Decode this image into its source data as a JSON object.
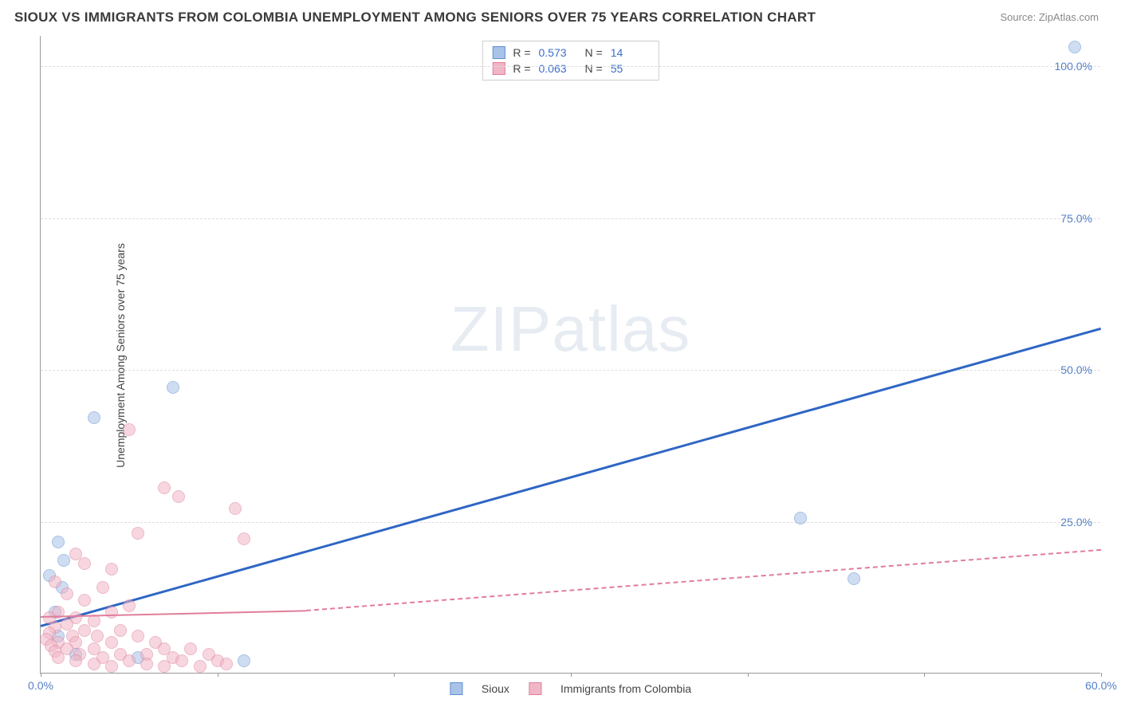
{
  "title": "SIOUX VS IMMIGRANTS FROM COLOMBIA UNEMPLOYMENT AMONG SENIORS OVER 75 YEARS CORRELATION CHART",
  "source": "Source: ZipAtlas.com",
  "ylabel": "Unemployment Among Seniors over 75 years",
  "watermark": {
    "bold": "ZIP",
    "thin": "atlas"
  },
  "chart": {
    "type": "scatter",
    "xlim": [
      0,
      60
    ],
    "ylim": [
      0,
      105
    ],
    "x_ticks": [
      0,
      10,
      20,
      30,
      40,
      50,
      60
    ],
    "x_tick_labels": [
      "0.0%",
      "",
      "",
      "",
      "",
      "",
      "60.0%"
    ],
    "y_gridlines": [
      25,
      50,
      75,
      100
    ],
    "y_tick_labels": [
      "25.0%",
      "50.0%",
      "75.0%",
      "100.0%"
    ],
    "grid_color": "#dddddd",
    "background_color": "#ffffff",
    "axis_color": "#999999",
    "tick_label_color": "#5680c8",
    "tick_label_fontsize": 14,
    "marker_radius": 8,
    "marker_opacity": 0.55,
    "series": [
      {
        "name": "Sioux",
        "fill_color": "#a9c3e8",
        "stroke_color": "#5f8fd1",
        "correlation_R": "0.573",
        "correlation_N": "14",
        "trendline": {
          "color": "#2f66c4",
          "width": 2.5,
          "dash": "solid",
          "x1": 0,
          "y1": 8,
          "x2": 60,
          "y2": 57,
          "extrapolate_dash_from_x": null
        },
        "points": [
          {
            "x": 58.5,
            "y": 103
          },
          {
            "x": 43.0,
            "y": 25.5
          },
          {
            "x": 46.0,
            "y": 15.5
          },
          {
            "x": 3.0,
            "y": 42.0
          },
          {
            "x": 7.5,
            "y": 47.0
          },
          {
            "x": 1.0,
            "y": 21.5
          },
          {
            "x": 1.3,
            "y": 18.5
          },
          {
            "x": 0.5,
            "y": 16.0
          },
          {
            "x": 1.2,
            "y": 14.0
          },
          {
            "x": 0.8,
            "y": 10.0
          },
          {
            "x": 2.0,
            "y": 3.0
          },
          {
            "x": 5.5,
            "y": 2.5
          },
          {
            "x": 11.5,
            "y": 2.0
          },
          {
            "x": 1.0,
            "y": 6.0
          }
        ]
      },
      {
        "name": "Immigrants from Colombia",
        "fill_color": "#f1b6c6",
        "stroke_color": "#e07e9a",
        "correlation_R": "0.063",
        "correlation_N": "55",
        "trendline": {
          "color": "#e07e9a",
          "width": 2,
          "dash": "solid",
          "x1": 0,
          "y1": 9.5,
          "x2": 15,
          "y2": 10.5,
          "extrapolate_dash_from_x": 15,
          "extrapolate_x2": 60,
          "extrapolate_y2": 20.5
        },
        "points": [
          {
            "x": 5.0,
            "y": 40.0
          },
          {
            "x": 7.0,
            "y": 30.5
          },
          {
            "x": 7.8,
            "y": 29.0
          },
          {
            "x": 11.0,
            "y": 27.0
          },
          {
            "x": 5.5,
            "y": 23.0
          },
          {
            "x": 11.5,
            "y": 22.0
          },
          {
            "x": 2.0,
            "y": 19.5
          },
          {
            "x": 2.5,
            "y": 18.0
          },
          {
            "x": 4.0,
            "y": 17.0
          },
          {
            "x": 0.8,
            "y": 15.0
          },
          {
            "x": 3.5,
            "y": 14.0
          },
          {
            "x": 1.5,
            "y": 13.0
          },
          {
            "x": 2.5,
            "y": 12.0
          },
          {
            "x": 5.0,
            "y": 11.0
          },
          {
            "x": 1.0,
            "y": 10.0
          },
          {
            "x": 4.0,
            "y": 10.0
          },
          {
            "x": 0.5,
            "y": 9.0
          },
          {
            "x": 2.0,
            "y": 9.0
          },
          {
            "x": 3.0,
            "y": 8.5
          },
          {
            "x": 1.5,
            "y": 8.0
          },
          {
            "x": 0.8,
            "y": 7.5
          },
          {
            "x": 2.5,
            "y": 7.0
          },
          {
            "x": 4.5,
            "y": 7.0
          },
          {
            "x": 0.5,
            "y": 6.5
          },
          {
            "x": 1.8,
            "y": 6.0
          },
          {
            "x": 3.2,
            "y": 6.0
          },
          {
            "x": 5.5,
            "y": 6.0
          },
          {
            "x": 0.3,
            "y": 5.5
          },
          {
            "x": 1.0,
            "y": 5.0
          },
          {
            "x": 2.0,
            "y": 5.0
          },
          {
            "x": 4.0,
            "y": 5.0
          },
          {
            "x": 6.5,
            "y": 5.0
          },
          {
            "x": 0.6,
            "y": 4.5
          },
          {
            "x": 1.5,
            "y": 4.0
          },
          {
            "x": 3.0,
            "y": 4.0
          },
          {
            "x": 7.0,
            "y": 4.0
          },
          {
            "x": 8.5,
            "y": 4.0
          },
          {
            "x": 0.8,
            "y": 3.5
          },
          {
            "x": 2.2,
            "y": 3.0
          },
          {
            "x": 4.5,
            "y": 3.0
          },
          {
            "x": 6.0,
            "y": 3.0
          },
          {
            "x": 9.5,
            "y": 3.0
          },
          {
            "x": 1.0,
            "y": 2.5
          },
          {
            "x": 3.5,
            "y": 2.5
          },
          {
            "x": 7.5,
            "y": 2.5
          },
          {
            "x": 2.0,
            "y": 2.0
          },
          {
            "x": 5.0,
            "y": 2.0
          },
          {
            "x": 8.0,
            "y": 2.0
          },
          {
            "x": 10.0,
            "y": 2.0
          },
          {
            "x": 3.0,
            "y": 1.5
          },
          {
            "x": 6.0,
            "y": 1.5
          },
          {
            "x": 4.0,
            "y": 1.0
          },
          {
            "x": 7.0,
            "y": 1.0
          },
          {
            "x": 9.0,
            "y": 1.0
          },
          {
            "x": 10.5,
            "y": 1.5
          }
        ]
      }
    ],
    "legend_bottom": {
      "items": [
        {
          "label": "Sioux",
          "fill": "#a9c3e8",
          "stroke": "#5f8fd1"
        },
        {
          "label": "Immigrants from Colombia",
          "fill": "#f1b6c6",
          "stroke": "#e07e9a"
        }
      ]
    }
  }
}
